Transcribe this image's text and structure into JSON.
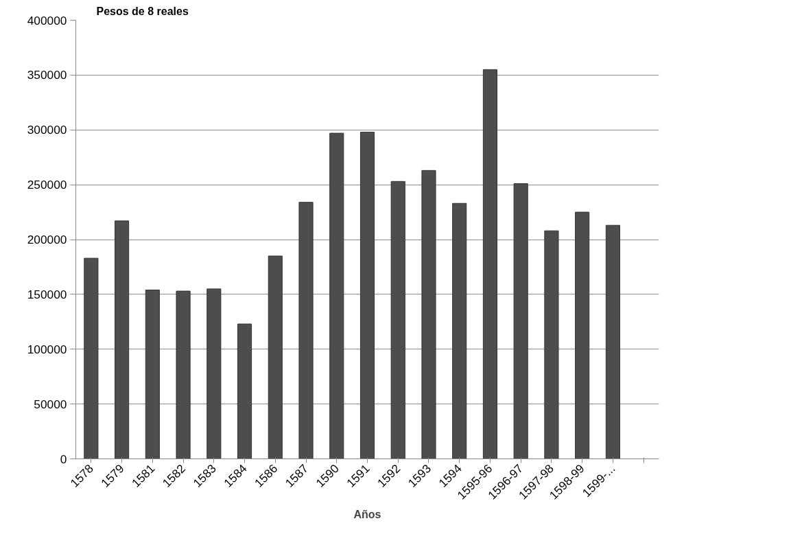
{
  "chart_data": {
    "type": "bar",
    "ylabel": "Pesos de 8 reales",
    "xlabel": "Años",
    "categories": [
      "1578",
      "1579",
      "1581",
      "1582",
      "1583",
      "1584",
      "1586",
      "1587",
      "1590",
      "1591",
      "1592",
      "1593",
      "1594",
      "1595-96",
      "1596-97",
      "1597-98",
      "1598-99",
      "1599-...",
      null
    ],
    "values": [
      183000,
      217000,
      154000,
      153000,
      155000,
      123000,
      185000,
      234000,
      297000,
      298000,
      253000,
      263000,
      233000,
      355000,
      251000,
      208000,
      225000,
      213000,
      null
    ],
    "color": "#4d4d4d",
    "ylim": [
      0,
      400000
    ],
    "yticks": [
      0,
      50000,
      100000,
      150000,
      200000,
      250000,
      300000,
      350000,
      400000
    ],
    "grid": "y"
  }
}
